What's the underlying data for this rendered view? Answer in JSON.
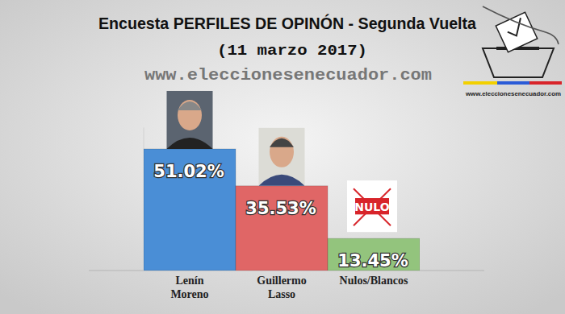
{
  "chart_data": {
    "type": "bar",
    "title": "Encuesta PERFILES DE OPINÓN - Segunda Vuelta",
    "subtitle": "(11 marzo 2017)",
    "annotations": [
      "www.eleccionesenecuador.com",
      "www.eleccionesenecuador.com",
      "NULO"
    ],
    "categories": [
      "Lenín Moreno",
      "Guillermo Lasso",
      "Nulos/Blancos"
    ],
    "values": [
      51.02,
      35.53,
      13.45
    ],
    "value_labels": [
      "51.02%",
      "35.53%",
      "13.45%"
    ],
    "colors": [
      "#4a8ed6",
      "#e06666",
      "#93c47d"
    ],
    "ylim": [
      0,
      60
    ],
    "data_labels": true,
    "tick_labels": "x",
    "grid": false
  }
}
